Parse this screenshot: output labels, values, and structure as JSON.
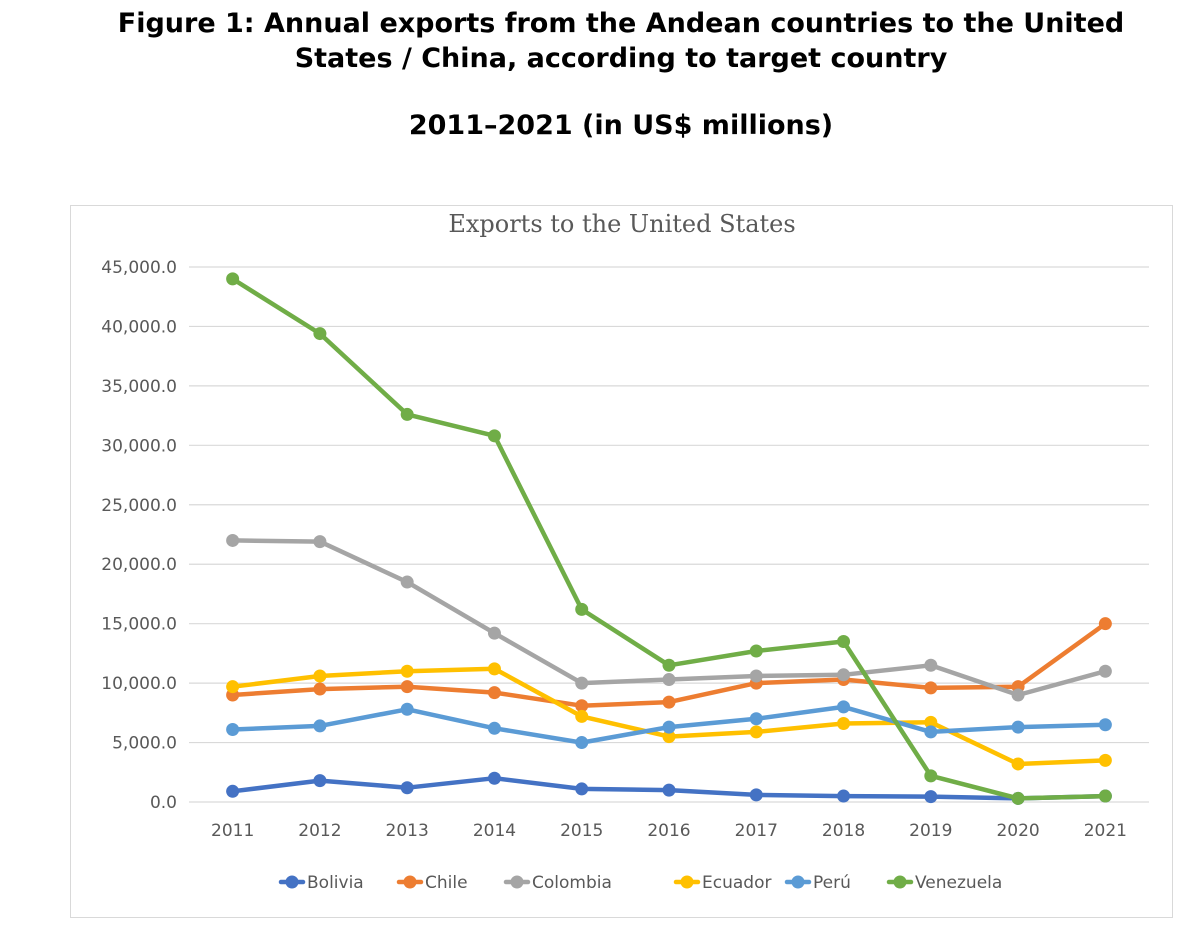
{
  "figure": {
    "title_line1": "Figure 1: Annual exports from the Andean countries to the United",
    "title_line2": "States / China, according to target country",
    "subtitle": "2011–2021 (in US$ millions)"
  },
  "chart_data": {
    "type": "line",
    "title": "Exports to the United States",
    "xlabel": "",
    "ylabel": "",
    "categories": [
      "2011",
      "2012",
      "2013",
      "2014",
      "2015",
      "2016",
      "2017",
      "2018",
      "2019",
      "2020",
      "2021"
    ],
    "ylim": [
      0,
      45000
    ],
    "yticks": [
      0,
      5000,
      10000,
      15000,
      20000,
      25000,
      30000,
      35000,
      40000,
      45000
    ],
    "ytick_labels": [
      "0.0",
      "5,000.0",
      "10,000.0",
      "15,000.0",
      "20,000.0",
      "25,000.0",
      "30,000.0",
      "35,000.0",
      "40,000.0",
      "45,000.0"
    ],
    "grid": true,
    "legend_position": "bottom",
    "series": [
      {
        "name": "Bolivia",
        "color": "#4472c4",
        "values": [
          900,
          1800,
          1200,
          2000,
          1100,
          1000,
          600,
          500,
          450,
          300,
          500
        ]
      },
      {
        "name": "Chile",
        "color": "#ed7d31",
        "values": [
          9000,
          9500,
          9700,
          9200,
          8100,
          8400,
          10000,
          10300,
          9600,
          9700,
          15000
        ]
      },
      {
        "name": "Colombia",
        "color": "#a5a5a5",
        "values": [
          22000,
          21900,
          18500,
          14200,
          10000,
          10300,
          10600,
          10700,
          11500,
          9000,
          11000
        ]
      },
      {
        "name": "Ecuador",
        "color": "#ffc000",
        "values": [
          9700,
          10600,
          11000,
          11200,
          7200,
          5500,
          5900,
          6600,
          6700,
          3200,
          3500
        ]
      },
      {
        "name": "Perú",
        "color": "#5b9bd5",
        "values": [
          6100,
          6400,
          7800,
          6200,
          5000,
          6300,
          7000,
          8000,
          5900,
          6300,
          6500
        ]
      },
      {
        "name": "Venezuela",
        "color": "#70ad47",
        "values": [
          44000,
          39400,
          32600,
          30800,
          16200,
          11500,
          12700,
          13500,
          2200,
          300,
          500
        ]
      }
    ]
  }
}
